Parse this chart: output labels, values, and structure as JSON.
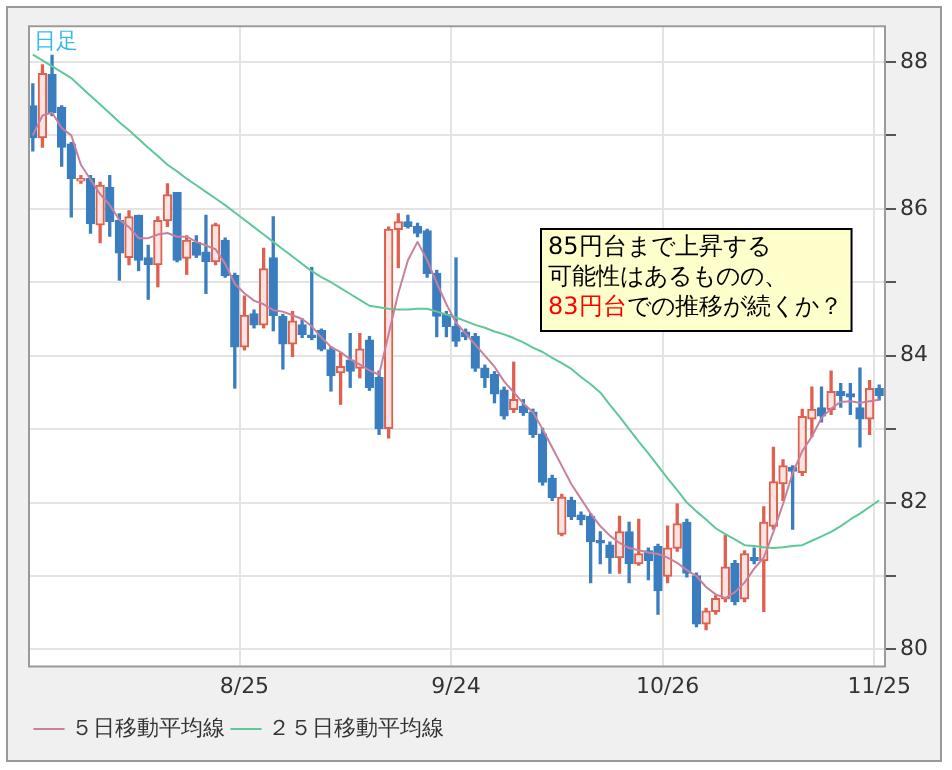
{
  "chart_data": {
    "type": "candlestick",
    "categories": [
      null,
      null,
      null,
      null,
      null,
      null,
      null,
      null,
      null,
      null,
      null,
      null,
      null,
      null,
      null,
      null,
      null,
      null,
      null,
      null,
      null,
      null,
      "8/25",
      null,
      null,
      null,
      null,
      null,
      null,
      null,
      null,
      null,
      null,
      null,
      null,
      null,
      null,
      null,
      null,
      null,
      null,
      null,
      null,
      null,
      "9/24",
      null,
      null,
      null,
      null,
      null,
      null,
      null,
      null,
      null,
      null,
      null,
      null,
      null,
      null,
      null,
      null,
      null,
      null,
      null,
      null,
      null,
      "10/26",
      null,
      null,
      null,
      null,
      null,
      null,
      null,
      null,
      null,
      null,
      null,
      null,
      null,
      null,
      null,
      null,
      null,
      null,
      null,
      null,
      null,
      "11/25"
    ],
    "ohlc": [
      [
        87.4,
        87.7,
        86.79,
        86.97
      ],
      [
        86.97,
        87.96,
        86.84,
        87.84
      ],
      [
        87.83,
        88.09,
        87.27,
        87.31
      ],
      [
        87.38,
        87.4,
        86.58,
        86.84
      ],
      [
        86.88,
        86.9,
        85.89,
        86.41
      ],
      [
        86.38,
        86.45,
        86.35,
        86.41
      ],
      [
        86.41,
        86.45,
        85.67,
        85.8
      ],
      [
        85.78,
        86.36,
        85.54,
        86.32
      ],
      [
        86.29,
        86.45,
        85.63,
        85.83
      ],
      [
        85.84,
        85.93,
        85.03,
        85.4
      ],
      [
        85.34,
        85.97,
        85.24,
        85.89
      ],
      [
        85.91,
        85.91,
        85.16,
        85.3
      ],
      [
        85.33,
        85.5,
        84.77,
        85.24
      ],
      [
        85.24,
        85.89,
        84.94,
        85.84
      ],
      [
        85.84,
        86.34,
        85.76,
        86.19
      ],
      [
        86.22,
        86.22,
        85.28,
        85.3
      ],
      [
        85.33,
        85.63,
        85.11,
        85.57
      ],
      [
        85.54,
        85.63,
        85.34,
        85.37
      ],
      [
        85.41,
        85.91,
        84.85,
        85.28
      ],
      [
        85.28,
        85.8,
        85.24,
        85.78
      ],
      [
        85.57,
        85.6,
        85.07,
        85.09
      ],
      [
        85.09,
        85.12,
        83.56,
        84.12
      ],
      [
        84.12,
        84.81,
        84.08,
        84.55
      ],
      [
        84.57,
        84.62,
        84.38,
        84.42
      ],
      [
        84.42,
        85.46,
        84.38,
        85.18
      ],
      [
        85.33,
        85.89,
        84.34,
        84.55
      ],
      [
        84.53,
        84.56,
        83.82,
        84.16
      ],
      [
        84.16,
        84.6,
        83.99,
        84.47
      ],
      [
        84.42,
        84.5,
        84.25,
        84.29
      ],
      [
        84.28,
        85.2,
        84.22,
        84.25
      ],
      [
        84.34,
        84.36,
        84.07,
        84.09
      ],
      [
        84.08,
        84.12,
        83.52,
        83.73
      ],
      [
        83.77,
        84.04,
        83.34,
        83.85
      ],
      [
        83.94,
        84.3,
        83.57,
        83.79
      ],
      [
        83.83,
        84.3,
        83.7,
        84.09
      ],
      [
        84.21,
        84.26,
        83.53,
        83.57
      ],
      [
        83.7,
        83.79,
        82.93,
        83.01
      ],
      [
        83.01,
        85.75,
        82.88,
        85.72
      ],
      [
        85.72,
        85.93,
        85.2,
        85.82
      ],
      [
        85.82,
        85.91,
        85.74,
        85.76
      ],
      [
        85.76,
        85.8,
        85.62,
        85.67
      ],
      [
        85.7,
        85.72,
        85.07,
        85.12
      ],
      [
        85.12,
        85.16,
        84.26,
        84.54
      ],
      [
        84.56,
        84.6,
        84.26,
        84.4
      ],
      [
        84.4,
        85.33,
        84.13,
        84.2
      ],
      [
        84.32,
        84.36,
        84.22,
        84.26
      ],
      [
        84.26,
        84.3,
        83.79,
        83.83
      ],
      [
        83.83,
        83.87,
        83.57,
        83.7
      ],
      [
        83.74,
        83.78,
        83.36,
        83.48
      ],
      [
        83.53,
        83.57,
        83.14,
        83.18
      ],
      [
        83.27,
        83.91,
        83.23,
        83.4
      ],
      [
        83.31,
        83.4,
        83.19,
        83.23
      ],
      [
        83.23,
        83.27,
        82.89,
        82.93
      ],
      [
        82.93,
        83.01,
        82.24,
        82.28
      ],
      [
        82.33,
        82.37,
        82.03,
        82.07
      ],
      [
        81.57,
        82.11,
        81.55,
        82.07
      ],
      [
        82.03,
        82.07,
        81.77,
        81.81
      ],
      [
        81.83,
        81.87,
        81.7,
        81.77
      ],
      [
        81.81,
        81.85,
        80.91,
        81.47
      ],
      [
        81.48,
        81.6,
        81.17,
        81.45
      ],
      [
        81.42,
        81.46,
        81.04,
        81.25
      ],
      [
        81.25,
        81.81,
        81.04,
        81.6
      ],
      [
        81.6,
        81.73,
        80.91,
        81.17
      ],
      [
        81.17,
        81.77,
        81.15,
        81.3
      ],
      [
        81.34,
        81.38,
        80.95,
        81.21
      ],
      [
        81.4,
        81.43,
        80.48,
        80.8
      ],
      [
        81.0,
        81.68,
        80.91,
        81.38
      ],
      [
        81.38,
        81.98,
        81.34,
        81.71
      ],
      [
        81.73,
        81.77,
        80.99,
        81.04
      ],
      [
        81.0,
        81.04,
        80.31,
        80.35
      ],
      [
        80.35,
        80.56,
        80.27,
        80.52
      ],
      [
        80.52,
        80.73,
        80.48,
        80.69
      ],
      [
        80.69,
        81.55,
        80.65,
        81.12
      ],
      [
        81.17,
        81.21,
        80.61,
        80.65
      ],
      [
        80.69,
        81.34,
        80.65,
        81.3
      ],
      [
        81.25,
        81.38,
        81.17,
        81.21
      ],
      [
        81.21,
        81.94,
        80.52,
        81.73
      ],
      [
        81.68,
        82.75,
        81.64,
        82.28
      ],
      [
        82.26,
        82.58,
        82.03,
        82.5
      ],
      [
        82.48,
        82.5,
        81.64,
        82.43
      ],
      [
        82.41,
        83.27,
        82.37,
        83.17
      ],
      [
        83.14,
        83.57,
        82.9,
        83.27
      ],
      [
        83.29,
        83.57,
        83.1,
        83.18
      ],
      [
        83.27,
        83.79,
        83.2,
        83.51
      ],
      [
        83.51,
        83.62,
        83.3,
        83.46
      ],
      [
        83.48,
        83.62,
        83.2,
        83.44
      ],
      [
        83.29,
        83.83,
        82.76,
        83.14
      ],
      [
        83.14,
        83.66,
        82.93,
        83.55
      ],
      [
        83.55,
        83.6,
        83.4,
        83.46
      ]
    ],
    "series": [
      {
        "name": "５日移動平均線",
        "type": "line",
        "color": "#c8809c",
        "values": [
          87.0,
          87.27,
          87.31,
          87.1,
          87.0,
          86.6,
          86.4,
          86.2,
          86.05,
          85.85,
          85.75,
          85.6,
          85.6,
          85.65,
          85.67,
          85.62,
          85.62,
          85.55,
          85.5,
          85.45,
          85.25,
          84.98,
          84.85,
          84.75,
          84.7,
          84.62,
          84.6,
          84.55,
          84.5,
          84.4,
          84.25,
          84.12,
          84.05,
          83.95,
          83.88,
          83.8,
          83.74,
          84.3,
          84.85,
          85.3,
          85.55,
          85.3,
          84.99,
          84.7,
          84.45,
          84.3,
          84.15,
          84.0,
          83.85,
          83.65,
          83.5,
          83.35,
          83.23,
          83.0,
          82.75,
          82.5,
          82.25,
          82.05,
          81.85,
          81.68,
          81.55,
          81.45,
          81.38,
          81.35,
          81.32,
          81.3,
          81.25,
          81.18,
          81.08,
          81.0,
          80.85,
          80.75,
          80.7,
          80.78,
          80.91,
          81.1,
          81.25,
          81.6,
          81.98,
          82.4,
          82.7,
          82.9,
          83.15,
          83.28,
          83.37,
          83.38,
          83.36,
          83.38,
          83.4
        ]
      },
      {
        "name": "２５日移動平均線",
        "type": "line",
        "color": "#5ec898",
        "values": [
          88.1,
          88.02,
          87.94,
          87.86,
          87.78,
          87.66,
          87.54,
          87.42,
          87.3,
          87.18,
          87.07,
          86.95,
          86.83,
          86.72,
          86.6,
          86.51,
          86.41,
          86.32,
          86.23,
          86.14,
          86.05,
          85.95,
          85.85,
          85.75,
          85.65,
          85.55,
          85.45,
          85.35,
          85.25,
          85.15,
          85.07,
          85.0,
          84.92,
          84.84,
          84.76,
          84.68,
          84.66,
          84.64,
          84.63,
          84.63,
          84.64,
          84.64,
          84.6,
          84.56,
          84.52,
          84.47,
          84.42,
          84.38,
          84.33,
          84.29,
          84.24,
          84.18,
          84.11,
          84.05,
          83.97,
          83.9,
          83.82,
          83.71,
          83.61,
          83.5,
          83.33,
          83.17,
          83.0,
          82.83,
          82.67,
          82.5,
          82.33,
          82.17,
          82.0,
          81.88,
          81.77,
          81.65,
          81.57,
          81.5,
          81.42,
          81.41,
          81.39,
          81.38,
          81.39,
          81.41,
          81.42,
          81.48,
          81.54,
          81.6,
          81.68,
          81.77,
          81.85,
          81.94,
          82.03
        ]
      }
    ],
    "ylim": [
      79.78,
      88.5
    ],
    "yticks": [
      80,
      {
        "value": 81,
        "label": null
      },
      82,
      {
        "value": 83,
        "label": null
      },
      84,
      {
        "value": 85,
        "label": null
      },
      86,
      {
        "value": 87,
        "label": null
      },
      88
    ],
    "grid": true,
    "legend": "bottom",
    "annotations": [
      "日足",
      "85円台まで上昇する",
      "可能性はあるものの、",
      "83円台",
      "での推移が続くか？"
    ]
  }
}
